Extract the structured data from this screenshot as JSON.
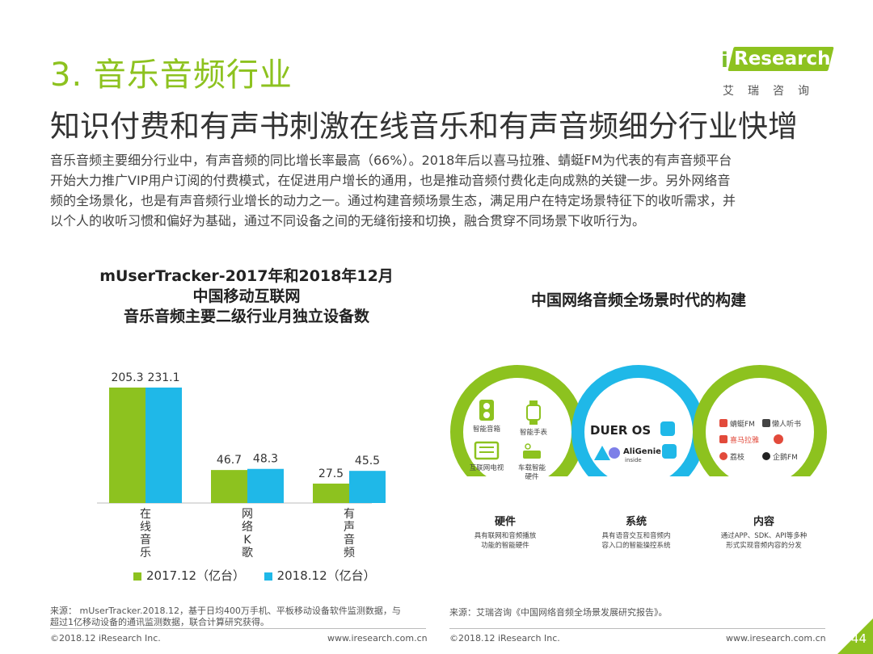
{
  "section_title": "3. 音乐音频行业",
  "logo": {
    "brand_i": "i",
    "brand_rest": "Research",
    "cn": "艾瑞咨询"
  },
  "headline": "知识付费和有声书刺激在线音乐和有声音频细分行业快增",
  "intro": [
    "音乐音频主要细分行业中，有声音频的同比增长率最高（66%）。2018年后以喜马拉雅、蜻蜓FM为代表的有声音频平台",
    "开始大力推广VIP用户订阅的付费模式，在促进用户增长的通用，也是推动音频付费化走向成熟的关键一步。另外网络音",
    "频的全场景化，也是有声音频行业增长的动力之一。通过构建音频场景生态，满足用户在特定场景特征下的收听需求，并",
    "以个人的收听习惯和偏好为基础，通过不同设备之间的无缝衔接和切换，融合贯穿不同场景下收听行为。"
  ],
  "chart_data": {
    "type": "bar",
    "title": [
      "mUserTracker-2017年和2018年12月",
      "中国移动互联网",
      "音乐音频主要二级行业月独立设备数"
    ],
    "categories": [
      "在线音乐",
      "网络K歌",
      "有声音频"
    ],
    "series": [
      {
        "name": "2017.12（亿台）",
        "values": [
          205.3,
          46.7,
          27.5
        ],
        "color": "#8dc21f"
      },
      {
        "name": "2018.12（亿台）",
        "values": [
          231.1,
          48.3,
          45.5
        ],
        "color": "#1fb8e8"
      }
    ],
    "value_labels": [
      [
        "205.3",
        "46.7",
        "27.5"
      ],
      [
        "231.1",
        "48.3",
        "45.5"
      ]
    ],
    "legend_position": "bottom",
    "grid": false
  },
  "diagram": {
    "title": "中国网络音频全场景时代的构建",
    "hardware": {
      "devices": [
        "智能音箱",
        "智能手表",
        "互联网电视",
        "车载智能",
        "硬件"
      ],
      "caption": "硬件",
      "desc": [
        "具有联网和音频播放",
        "功能的智能硬件"
      ]
    },
    "system": {
      "logos": [
        "DUER OS",
        "AliGenie",
        "inside"
      ],
      "caption": "系统",
      "desc": [
        "具有语音交互和音频内",
        "容入口的智能操控系统"
      ]
    },
    "content": {
      "apps": [
        "蜻蜓FM",
        "懒人听书",
        "喜马拉雅",
        "荔枝",
        "企鹅FM"
      ],
      "caption": "内容",
      "desc": [
        "通过APP、SDK、API等多种",
        "形式实现音频内容的分发"
      ]
    },
    "colors": {
      "green": "#8dc21f",
      "blue": "#1fb8e8"
    }
  },
  "footer": {
    "source_left": [
      "来源： mUserTracker.2018.12，基于日均400万手机、平板移动设备软件监测数据，与",
      "超过1亿移动设备的通讯监测数据，联合计算研究获得。"
    ],
    "source_right": "来源：艾瑞咨询《中国网络音频全场景发展研究报告》。",
    "copyright": "©2018.12 iResearch Inc.",
    "website": "www.iresearch.com.cn",
    "page_number": "44"
  }
}
